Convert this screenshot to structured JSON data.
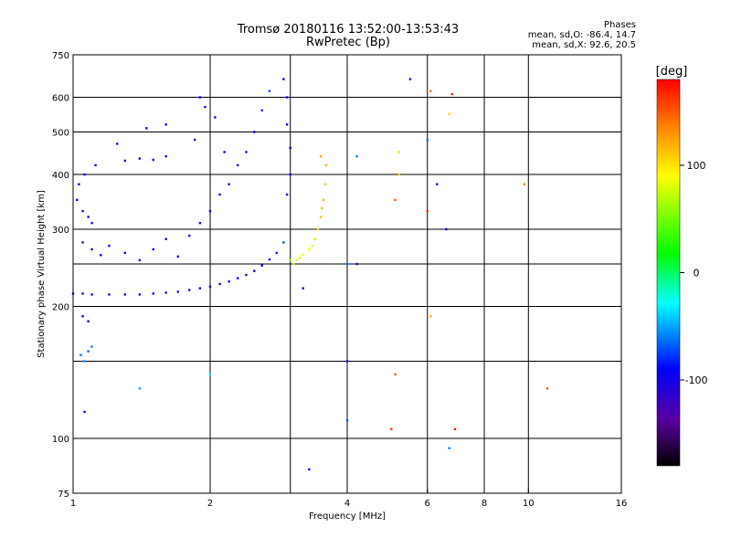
{
  "header": {
    "title_line1": "Tromsø 20180116 13:52:00-13:53:43",
    "title_line2": "RwPretec (Bp)"
  },
  "phases": {
    "title": "Phases",
    "o_line": "mean, sd,O: -86.4, 14.7",
    "x_line": "mean, sd,X:  92.6, 20.5"
  },
  "colorbar": {
    "label": "[deg]",
    "ticks": [
      "100",
      "0",
      "-100"
    ],
    "tick_values": [
      100,
      0,
      -100
    ],
    "range": [
      -180,
      180
    ]
  },
  "chart_data": {
    "type": "scatter",
    "xlabel": "Frequency [MHz]",
    "ylabel": "Stationary phase Virtual Height [km]",
    "xscale": "log",
    "yscale": "log",
    "xlim": [
      1,
      16
    ],
    "ylim": [
      75,
      750
    ],
    "xticks": [
      {
        "v": 1,
        "label": "1"
      },
      {
        "v": 2,
        "label": "2"
      },
      {
        "v": 4,
        "label": "4"
      },
      {
        "v": 6,
        "label": "6"
      },
      {
        "v": 8,
        "label": "8"
      },
      {
        "v": 10,
        "label": "10"
      },
      {
        "v": 16,
        "label": "16"
      }
    ],
    "yticks": [
      {
        "v": 75,
        "label": "75"
      },
      {
        "v": 100,
        "label": "100"
      },
      {
        "v": 200,
        "label": "200"
      },
      {
        "v": 300,
        "label": "300"
      },
      {
        "v": 400,
        "label": "400"
      },
      {
        "v": 500,
        "label": "500"
      },
      {
        "v": 600,
        "label": "600"
      },
      {
        "v": 750,
        "label": "750"
      }
    ],
    "xgrid": [
      2,
      3,
      4,
      6,
      8,
      10
    ],
    "ygrid": [
      100,
      150,
      200,
      250,
      300,
      400,
      500,
      600
    ],
    "grid": true,
    "points": [
      {
        "f": 1.0,
        "h": 214,
        "p": -110
      },
      {
        "f": 1.05,
        "h": 214,
        "p": -110
      },
      {
        "f": 1.1,
        "h": 213,
        "p": -108
      },
      {
        "f": 1.2,
        "h": 213,
        "p": -110
      },
      {
        "f": 1.3,
        "h": 213,
        "p": -108
      },
      {
        "f": 1.4,
        "h": 213,
        "p": -110
      },
      {
        "f": 1.5,
        "h": 214,
        "p": -108
      },
      {
        "f": 1.6,
        "h": 215,
        "p": -110
      },
      {
        "f": 1.7,
        "h": 216,
        "p": -108
      },
      {
        "f": 1.8,
        "h": 218,
        "p": -110
      },
      {
        "f": 1.9,
        "h": 220,
        "p": -108
      },
      {
        "f": 2.0,
        "h": 222,
        "p": -110
      },
      {
        "f": 2.1,
        "h": 225,
        "p": -105
      },
      {
        "f": 2.2,
        "h": 228,
        "p": -108
      },
      {
        "f": 2.3,
        "h": 232,
        "p": -100
      },
      {
        "f": 2.4,
        "h": 236,
        "p": -105
      },
      {
        "f": 2.5,
        "h": 241,
        "p": -100
      },
      {
        "f": 2.6,
        "h": 248,
        "p": -95
      },
      {
        "f": 2.7,
        "h": 256,
        "p": -90
      },
      {
        "f": 2.8,
        "h": 265,
        "p": -80
      },
      {
        "f": 2.9,
        "h": 280,
        "p": -70
      },
      {
        "f": 1.05,
        "h": 280,
        "p": -110
      },
      {
        "f": 1.1,
        "h": 270,
        "p": -105
      },
      {
        "f": 1.15,
        "h": 262,
        "p": -110
      },
      {
        "f": 1.2,
        "h": 275,
        "p": -100
      },
      {
        "f": 1.3,
        "h": 265,
        "p": -108
      },
      {
        "f": 1.4,
        "h": 255,
        "p": -110
      },
      {
        "f": 1.5,
        "h": 270,
        "p": -100
      },
      {
        "f": 1.6,
        "h": 285,
        "p": -105
      },
      {
        "f": 1.7,
        "h": 260,
        "p": -110
      },
      {
        "f": 1.8,
        "h": 290,
        "p": -100
      },
      {
        "f": 1.9,
        "h": 310,
        "p": -105
      },
      {
        "f": 2.0,
        "h": 330,
        "p": -110
      },
      {
        "f": 2.1,
        "h": 360,
        "p": -100
      },
      {
        "f": 2.2,
        "h": 380,
        "p": -105
      },
      {
        "f": 2.3,
        "h": 420,
        "p": -95
      },
      {
        "f": 2.4,
        "h": 450,
        "p": -100
      },
      {
        "f": 2.5,
        "h": 500,
        "p": -90
      },
      {
        "f": 2.6,
        "h": 560,
        "p": -80
      },
      {
        "f": 2.7,
        "h": 620,
        "p": -75
      },
      {
        "f": 1.9,
        "h": 600,
        "p": -95
      },
      {
        "f": 1.95,
        "h": 570,
        "p": -100
      },
      {
        "f": 2.05,
        "h": 540,
        "p": -100
      },
      {
        "f": 1.85,
        "h": 480,
        "p": -105
      },
      {
        "f": 2.15,
        "h": 450,
        "p": -105
      },
      {
        "f": 1.02,
        "h": 350,
        "p": -110
      },
      {
        "f": 1.05,
        "h": 330,
        "p": -105
      },
      {
        "f": 1.08,
        "h": 320,
        "p": -100
      },
      {
        "f": 1.1,
        "h": 310,
        "p": -110
      },
      {
        "f": 1.03,
        "h": 380,
        "p": -105
      },
      {
        "f": 1.06,
        "h": 400,
        "p": -110
      },
      {
        "f": 1.12,
        "h": 420,
        "p": -105
      },
      {
        "f": 1.3,
        "h": 430,
        "p": -110
      },
      {
        "f": 1.4,
        "h": 435,
        "p": -105
      },
      {
        "f": 1.5,
        "h": 432,
        "p": -108
      },
      {
        "f": 1.6,
        "h": 440,
        "p": -110
      },
      {
        "f": 1.25,
        "h": 470,
        "p": -105
      },
      {
        "f": 1.45,
        "h": 510,
        "p": -100
      },
      {
        "f": 1.6,
        "h": 520,
        "p": -105
      },
      {
        "f": 1.04,
        "h": 155,
        "p": -60
      },
      {
        "f": 1.06,
        "h": 150,
        "p": -55
      },
      {
        "f": 1.08,
        "h": 158,
        "p": -65
      },
      {
        "f": 1.1,
        "h": 162,
        "p": -60
      },
      {
        "f": 1.05,
        "h": 190,
        "p": -100
      },
      {
        "f": 1.08,
        "h": 185,
        "p": -105
      },
      {
        "f": 1.06,
        "h": 115,
        "p": -110
      },
      {
        "f": 3.05,
        "h": 250,
        "p": 70
      },
      {
        "f": 3.1,
        "h": 255,
        "p": 80
      },
      {
        "f": 3.2,
        "h": 262,
        "p": 90
      },
      {
        "f": 3.3,
        "h": 270,
        "p": 95
      },
      {
        "f": 3.4,
        "h": 285,
        "p": 100
      },
      {
        "f": 3.45,
        "h": 300,
        "p": 105
      },
      {
        "f": 3.5,
        "h": 320,
        "p": 110
      },
      {
        "f": 3.55,
        "h": 350,
        "p": 115
      },
      {
        "f": 3.58,
        "h": 380,
        "p": 110
      },
      {
        "f": 3.6,
        "h": 420,
        "p": 120
      },
      {
        "f": 3.5,
        "h": 440,
        "p": 125
      },
      {
        "f": 3.0,
        "h": 255,
        "p": 60
      },
      {
        "f": 3.15,
        "h": 258,
        "p": 75
      },
      {
        "f": 3.35,
        "h": 275,
        "p": 95
      },
      {
        "f": 3.52,
        "h": 335,
        "p": 112
      },
      {
        "f": 2.9,
        "h": 660,
        "p": -90
      },
      {
        "f": 2.95,
        "h": 600,
        "p": -95
      },
      {
        "f": 2.95,
        "h": 520,
        "p": -100
      },
      {
        "f": 3.0,
        "h": 460,
        "p": -95
      },
      {
        "f": 3.0,
        "h": 400,
        "p": -90
      },
      {
        "f": 2.95,
        "h": 360,
        "p": -85
      },
      {
        "f": 4.2,
        "h": 440,
        "p": -60
      },
      {
        "f": 4.0,
        "h": 250,
        "p": -60
      },
      {
        "f": 4.2,
        "h": 250,
        "p": -110
      },
      {
        "f": 4.0,
        "h": 150,
        "p": -110
      },
      {
        "f": 4.0,
        "h": 110,
        "p": -70
      },
      {
        "f": 5.2,
        "h": 450,
        "p": 100
      },
      {
        "f": 5.2,
        "h": 400,
        "p": 110
      },
      {
        "f": 5.1,
        "h": 350,
        "p": 150
      },
      {
        "f": 5.0,
        "h": 105,
        "p": 160
      },
      {
        "f": 5.1,
        "h": 140,
        "p": 150
      },
      {
        "f": 5.5,
        "h": 660,
        "p": -110
      },
      {
        "f": 6.0,
        "h": 480,
        "p": -60
      },
      {
        "f": 6.1,
        "h": 620,
        "p": 140
      },
      {
        "f": 6.8,
        "h": 610,
        "p": 170
      },
      {
        "f": 6.7,
        "h": 550,
        "p": 110
      },
      {
        "f": 6.0,
        "h": 330,
        "p": 160
      },
      {
        "f": 6.1,
        "h": 190,
        "p": 120
      },
      {
        "f": 6.3,
        "h": 380,
        "p": -110
      },
      {
        "f": 6.6,
        "h": 300,
        "p": -110
      },
      {
        "f": 6.7,
        "h": 95,
        "p": -60
      },
      {
        "f": 6.9,
        "h": 105,
        "p": 170
      },
      {
        "f": 9.8,
        "h": 380,
        "p": 130
      },
      {
        "f": 11.0,
        "h": 130,
        "p": 150
      },
      {
        "f": 3.2,
        "h": 220,
        "p": -110
      },
      {
        "f": 3.3,
        "h": 85,
        "p": -110
      },
      {
        "f": 2.0,
        "h": 140,
        "p": -30
      },
      {
        "f": 1.4,
        "h": 130,
        "p": -50
      }
    ]
  }
}
